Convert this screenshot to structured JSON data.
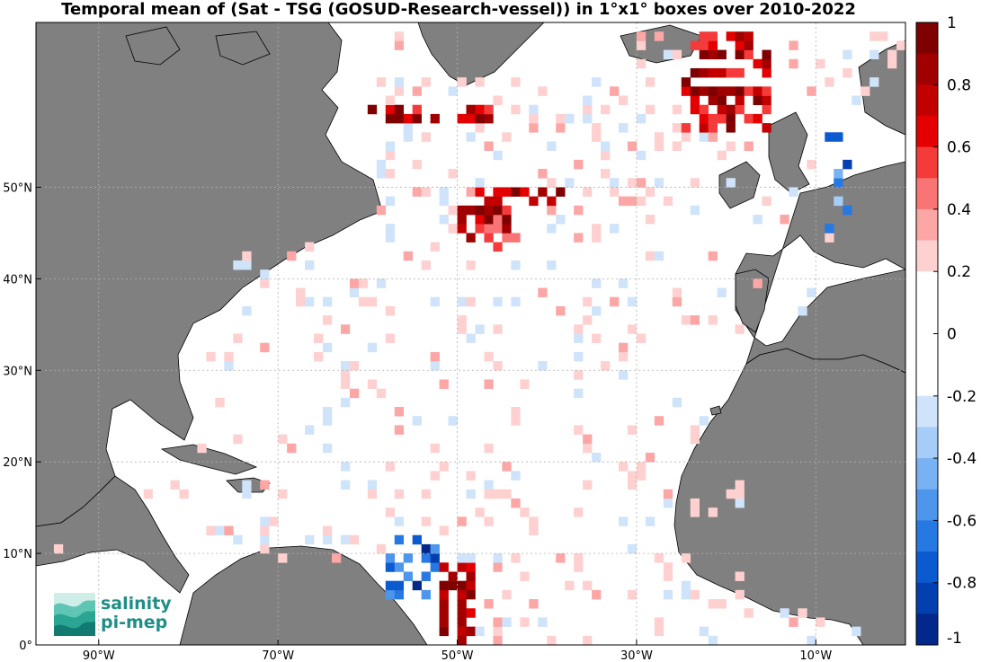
{
  "title": "Temporal mean of (Sat - TSG (GOSUD-Research-vessel)) in 1°x1° boxes over 2010-2022",
  "map": {
    "lon_range": [
      -97,
      0
    ],
    "lat_range": [
      0,
      68
    ],
    "x_ticks": [
      {
        "value": -90,
        "label": "90°W"
      },
      {
        "value": -70,
        "label": "70°W"
      },
      {
        "value": -50,
        "label": "50°W"
      },
      {
        "value": -30,
        "label": "30°W"
      },
      {
        "value": -10,
        "label": "10°W"
      }
    ],
    "y_ticks": [
      {
        "value": 0,
        "label": "0°"
      },
      {
        "value": 10,
        "label": "10°N"
      },
      {
        "value": 20,
        "label": "20°N"
      },
      {
        "value": 30,
        "label": "30°N"
      },
      {
        "value": 40,
        "label": "40°N"
      },
      {
        "value": 50,
        "label": "50°N"
      }
    ],
    "grid": true,
    "land_color": "#808080",
    "ocean_color": "#ffffff"
  },
  "colorbar": {
    "min": -1,
    "max": 1,
    "labels": [
      "1",
      "0.8",
      "0.6",
      "0.4",
      "0.2",
      "0",
      "-0.2",
      "-0.4",
      "-0.6",
      "-0.8",
      "-1"
    ],
    "colors": [
      "#7f0000",
      "#a10000",
      "#c30000",
      "#e40000",
      "#f53a3a",
      "#f97474",
      "#fca6a6",
      "#fed0d0",
      "#ffffff",
      "#ffffff",
      "#ffffff",
      "#ffffff",
      "#cfe3fa",
      "#a5cdf7",
      "#78b2f2",
      "#4d96ec",
      "#2678e3",
      "#0c5ad0",
      "#033fae",
      "#01288a"
    ]
  },
  "logo": {
    "line1": "salinity",
    "line2": "pi-mep"
  }
}
